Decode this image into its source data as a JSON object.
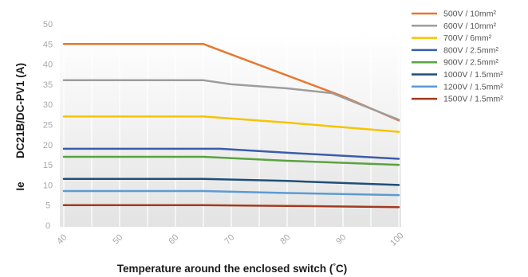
{
  "chart_data": {
    "type": "line",
    "xlabel_prefix": "Temperature around the enclosed switch (",
    "xlabel_degree": "°",
    "xlabel_suffix": "C)",
    "ylabel_prefix": "Ie",
    "ylabel_main": "DC21B/DC-PV1 (A)",
    "x_ticks": [
      40,
      50,
      60,
      70,
      80,
      90,
      100
    ],
    "y_ticks": [
      0,
      5,
      10,
      15,
      20,
      25,
      30,
      35,
      40,
      45,
      50
    ],
    "xlim": [
      40,
      100
    ],
    "ylim": [
      0,
      50
    ],
    "grid": "vertical",
    "legend_position": "right",
    "series": [
      {
        "name": "500V / 10mm²",
        "color": "#e8772e",
        "points": [
          [
            40,
            45
          ],
          [
            65,
            45
          ],
          [
            90,
            32
          ],
          [
            100,
            26
          ]
        ]
      },
      {
        "name": "600V / 10mm²",
        "color": "#9d9d9d",
        "points": [
          [
            40,
            36
          ],
          [
            65,
            36
          ],
          [
            70,
            35
          ],
          [
            80,
            34
          ],
          [
            88,
            32.8
          ],
          [
            100,
            26.2
          ]
        ]
      },
      {
        "name": "700V / 6mm²",
        "color": "#f5c400",
        "points": [
          [
            40,
            27
          ],
          [
            65,
            27
          ],
          [
            80,
            25.5
          ],
          [
            100,
            23.2
          ]
        ]
      },
      {
        "name": "800V / 2.5mm²",
        "color": "#3b5cab",
        "points": [
          [
            40,
            19
          ],
          [
            68,
            19
          ],
          [
            80,
            18
          ],
          [
            100,
            16.5
          ]
        ]
      },
      {
        "name": "900V / 2.5mm²",
        "color": "#5aa33f",
        "points": [
          [
            40,
            17
          ],
          [
            65,
            17
          ],
          [
            80,
            16
          ],
          [
            100,
            15
          ]
        ]
      },
      {
        "name": "1000V / 1.5mm²",
        "color": "#1f4e79",
        "points": [
          [
            40,
            11.5
          ],
          [
            65,
            11.5
          ],
          [
            80,
            11
          ],
          [
            100,
            10
          ]
        ]
      },
      {
        "name": "1200V / 1.5mm²",
        "color": "#5b9bd5",
        "points": [
          [
            40,
            8.5
          ],
          [
            65,
            8.5
          ],
          [
            80,
            8
          ],
          [
            100,
            7.5
          ]
        ]
      },
      {
        "name": "1500V / 1.5mm²",
        "color": "#a33a1f",
        "points": [
          [
            40,
            5
          ],
          [
            65,
            5
          ],
          [
            80,
            4.8
          ],
          [
            100,
            4.5
          ]
        ]
      }
    ]
  }
}
